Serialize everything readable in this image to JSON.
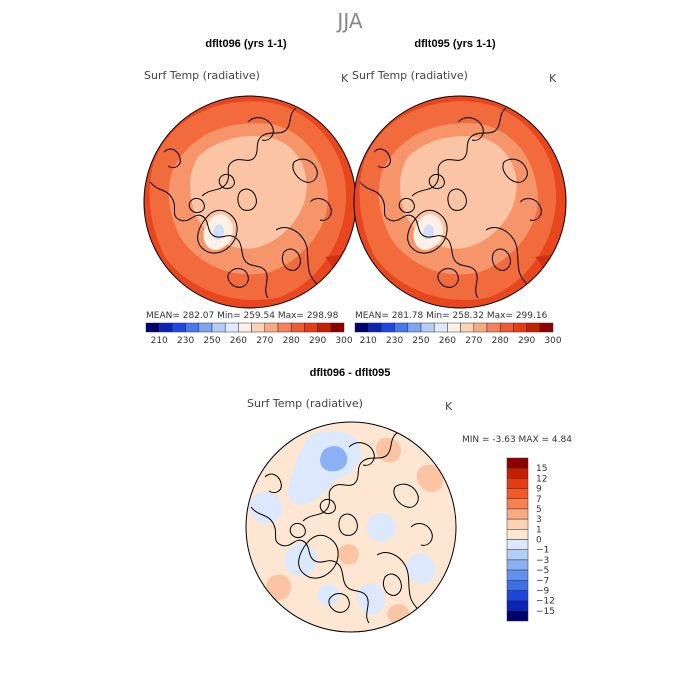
{
  "title": "JJA",
  "maps": [
    {
      "title": "dflt096 (yrs 1-1)",
      "variable": "Surf Temp (radiative)",
      "units": "K",
      "stats": "MEAN= 282.07   Min= 259.54   Max= 298.98"
    },
    {
      "title": "dflt095 (yrs 1-1)",
      "variable": "Surf Temp (radiative)",
      "units": "K",
      "stats": "MEAN= 281.78   Min= 258.32   Max= 299.16"
    },
    {
      "title": "dflt096 - dflt095",
      "variable": "Surf Temp (radiative)",
      "units": "K",
      "stats": "MIN =   -3.63  MAX =    4.84"
    }
  ],
  "abs_colorbar": {
    "labels": [
      "210",
      "230",
      "250",
      "260",
      "270",
      "280",
      "290",
      "300"
    ],
    "colors": [
      "#00006e",
      "#0b24b4",
      "#1e46e6",
      "#4678f0",
      "#7ea4f4",
      "#b4cdf8",
      "#dfeafc",
      "#fff0e6",
      "#fcd2b4",
      "#f9aa82",
      "#f5825a",
      "#ee5a32",
      "#e63c14",
      "#c81e00",
      "#8c0000"
    ]
  },
  "diff_colorbar": {
    "labels": [
      "15",
      "12",
      "9",
      "7",
      "5",
      "3",
      "1",
      "0",
      "−1",
      "−3",
      "−5",
      "−7",
      "−9",
      "−12",
      "−15"
    ],
    "colors": [
      "#8c0000",
      "#c81e00",
      "#e63c14",
      "#f05a28",
      "#f58250",
      "#f9aa82",
      "#fcd2b4",
      "#fde6d2",
      "#dce8fc",
      "#b4cdf8",
      "#8cb0f4",
      "#6490f0",
      "#3c6ee6",
      "#1e46dc",
      "#0b24b4",
      "#00006e"
    ]
  },
  "colors": {
    "outer_ring": "#e8461e",
    "mid_ring": "#f26b3c",
    "land_warm": "#f7956a",
    "arctic": "#fbc5a5",
    "greenland": "#fff0e6",
    "greenland_core": "#d0e0f8",
    "diff_background": "#fde6d2",
    "diff_blue": "#dce8fc",
    "diff_blue_strong": "#8cb0f4",
    "diff_orange": "#fbc5a5"
  }
}
